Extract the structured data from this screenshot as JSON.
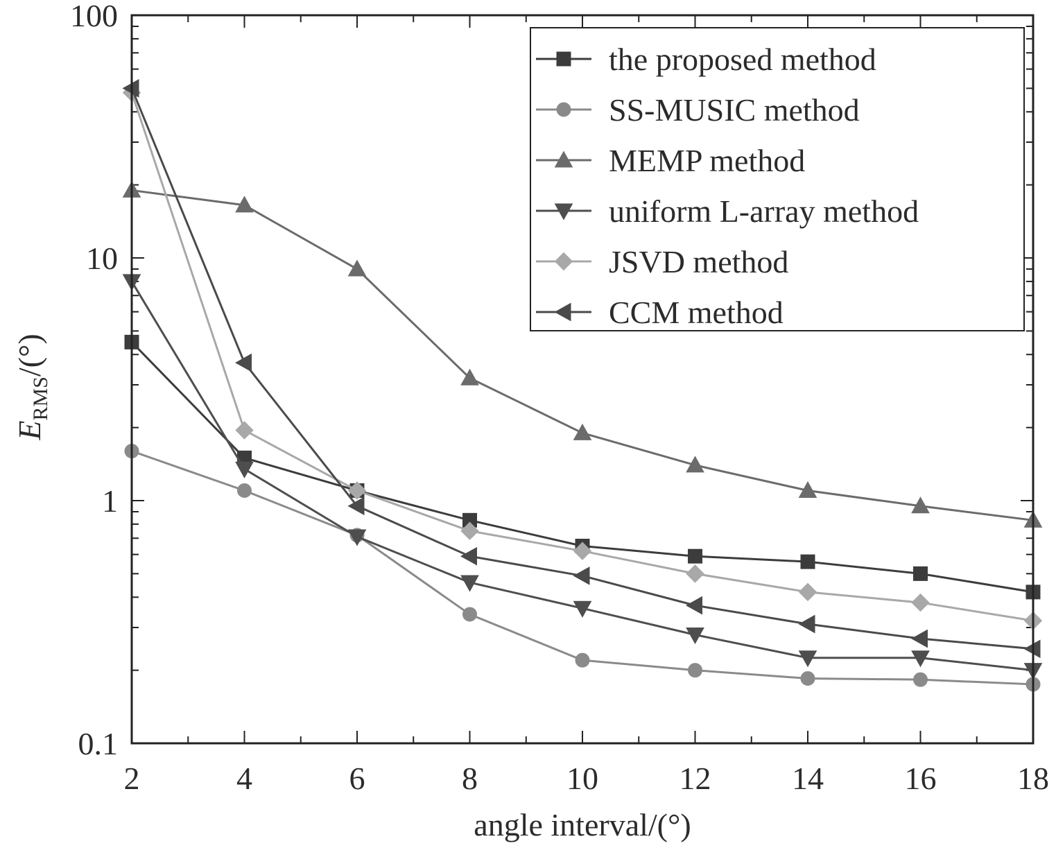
{
  "chart_data": {
    "type": "line",
    "xlabel": "angle interval/(°)",
    "ylabel_main": "E",
    "ylabel_sub": "RMS",
    "ylabel_suffix": "/(°)",
    "x": [
      2,
      4,
      6,
      8,
      10,
      12,
      14,
      16,
      18
    ],
    "xlim": [
      2,
      18
    ],
    "ylim": [
      0.1,
      100
    ],
    "yscale": "log",
    "x_ticks": [
      "2",
      "4",
      "6",
      "8",
      "10",
      "12",
      "14",
      "16",
      "18"
    ],
    "y_ticks": [
      "0.1",
      "1",
      "10",
      "100"
    ],
    "grid": false,
    "legend_position": "top-right",
    "series": [
      {
        "name": "the proposed method",
        "marker": "square",
        "color": "#3c3c3c",
        "values": [
          4.5,
          1.5,
          1.1,
          0.83,
          0.65,
          0.59,
          0.56,
          0.5,
          0.42
        ]
      },
      {
        "name": "SS-MUSIC method",
        "marker": "circle",
        "color": "#8a8a8a",
        "values": [
          1.6,
          1.1,
          0.72,
          0.34,
          0.22,
          0.2,
          0.185,
          0.183,
          0.175
        ]
      },
      {
        "name": "MEMP method",
        "marker": "triangle-up",
        "color": "#6b6b6b",
        "values": [
          19,
          16.5,
          9,
          3.2,
          1.9,
          1.4,
          1.1,
          0.95,
          0.83
        ]
      },
      {
        "name": "uniform L-array method",
        "marker": "triangle-down",
        "color": "#4e4e4e",
        "values": [
          8,
          1.35,
          0.71,
          0.46,
          0.36,
          0.28,
          0.225,
          0.225,
          0.2
        ]
      },
      {
        "name": "JSVD method",
        "marker": "diamond",
        "color": "#a8a8a8",
        "values": [
          48,
          1.95,
          1.1,
          0.75,
          0.62,
          0.5,
          0.42,
          0.38,
          0.32
        ]
      },
      {
        "name": "CCM method",
        "marker": "triangle-left",
        "color": "#4a4a4a",
        "values": [
          50,
          3.7,
          0.95,
          0.59,
          0.49,
          0.37,
          0.31,
          0.27,
          0.245
        ]
      }
    ]
  }
}
